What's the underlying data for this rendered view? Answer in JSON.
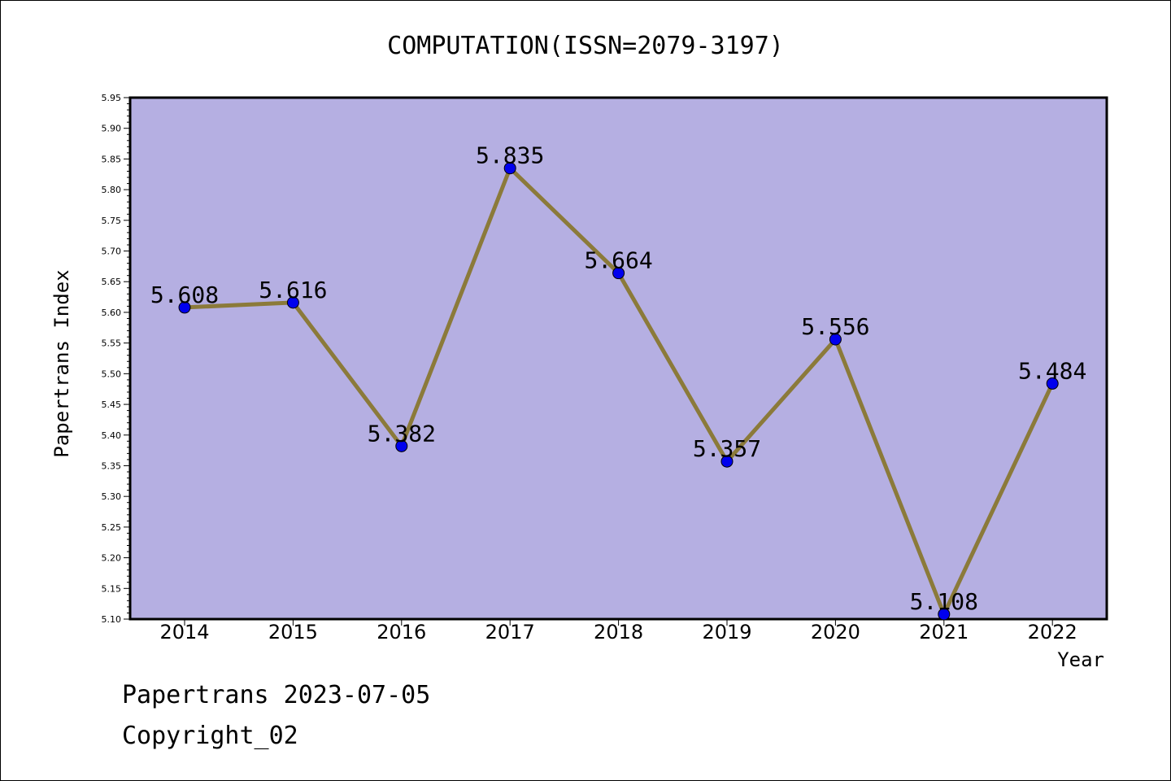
{
  "chart_data": {
    "type": "line",
    "title": "COMPUTATION(ISSN=2079-3197)",
    "xlabel": "Year",
    "ylabel": "Papertrans Index",
    "categories": [
      "2014",
      "2015",
      "2016",
      "2017",
      "2018",
      "2019",
      "2020",
      "2021",
      "2022"
    ],
    "values": [
      5.608,
      5.616,
      5.382,
      5.835,
      5.664,
      5.357,
      5.556,
      5.108,
      5.484
    ],
    "data_labels": [
      "5.608",
      "5.616",
      "5.382",
      "5.835",
      "5.664",
      "5.357",
      "5.556",
      "5.108",
      "5.484"
    ],
    "ylim": [
      5.1,
      5.95
    ],
    "yticks": [
      "5.10",
      "5.15",
      "5.20",
      "5.25",
      "5.30",
      "5.35",
      "5.40",
      "5.45",
      "5.50",
      "5.55",
      "5.60",
      "5.65",
      "5.70",
      "5.75",
      "5.80",
      "5.85",
      "5.90",
      "5.95"
    ],
    "grid": false,
    "colors": {
      "plot_background": "#b5afe2",
      "line": "#8b7a3a",
      "marker": "#0000ee"
    }
  },
  "footer": {
    "line1": "Papertrans 2023-07-05",
    "line2": "Copyright_02"
  }
}
